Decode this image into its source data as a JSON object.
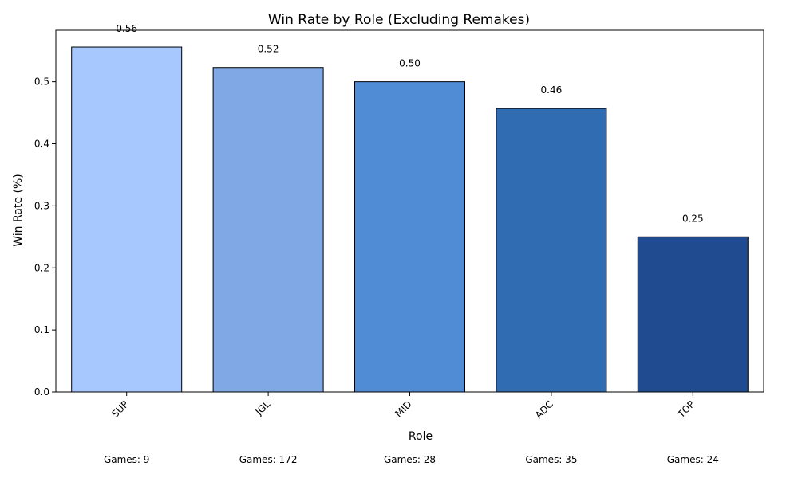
{
  "chart_data": {
    "type": "bar",
    "title": "Win Rate by Role (Excluding Remakes)",
    "xlabel": "Role",
    "ylabel": "Win Rate (%)",
    "categories": [
      "SUP",
      "JGL",
      "MID",
      "ADC",
      "TOP"
    ],
    "values": [
      0.556,
      0.523,
      0.5,
      0.457,
      0.25
    ],
    "value_labels": [
      "0.56",
      "0.52",
      "0.50",
      "0.46",
      "0.25"
    ],
    "games_labels": [
      "Games: 9",
      "Games: 172",
      "Games: 28",
      "Games: 35",
      "Games: 24"
    ],
    "colors": [
      "#a6c8ff",
      "#7fa8e4",
      "#508bd6",
      "#2f6cb2",
      "#204b91"
    ],
    "ylim": [
      0,
      0.583
    ],
    "yticks": [
      0.0,
      0.1,
      0.2,
      0.3,
      0.4,
      0.5
    ],
    "ytick_labels": [
      "0.0",
      "0.1",
      "0.2",
      "0.3",
      "0.4",
      "0.5"
    ],
    "grid": false,
    "legend": "none"
  }
}
